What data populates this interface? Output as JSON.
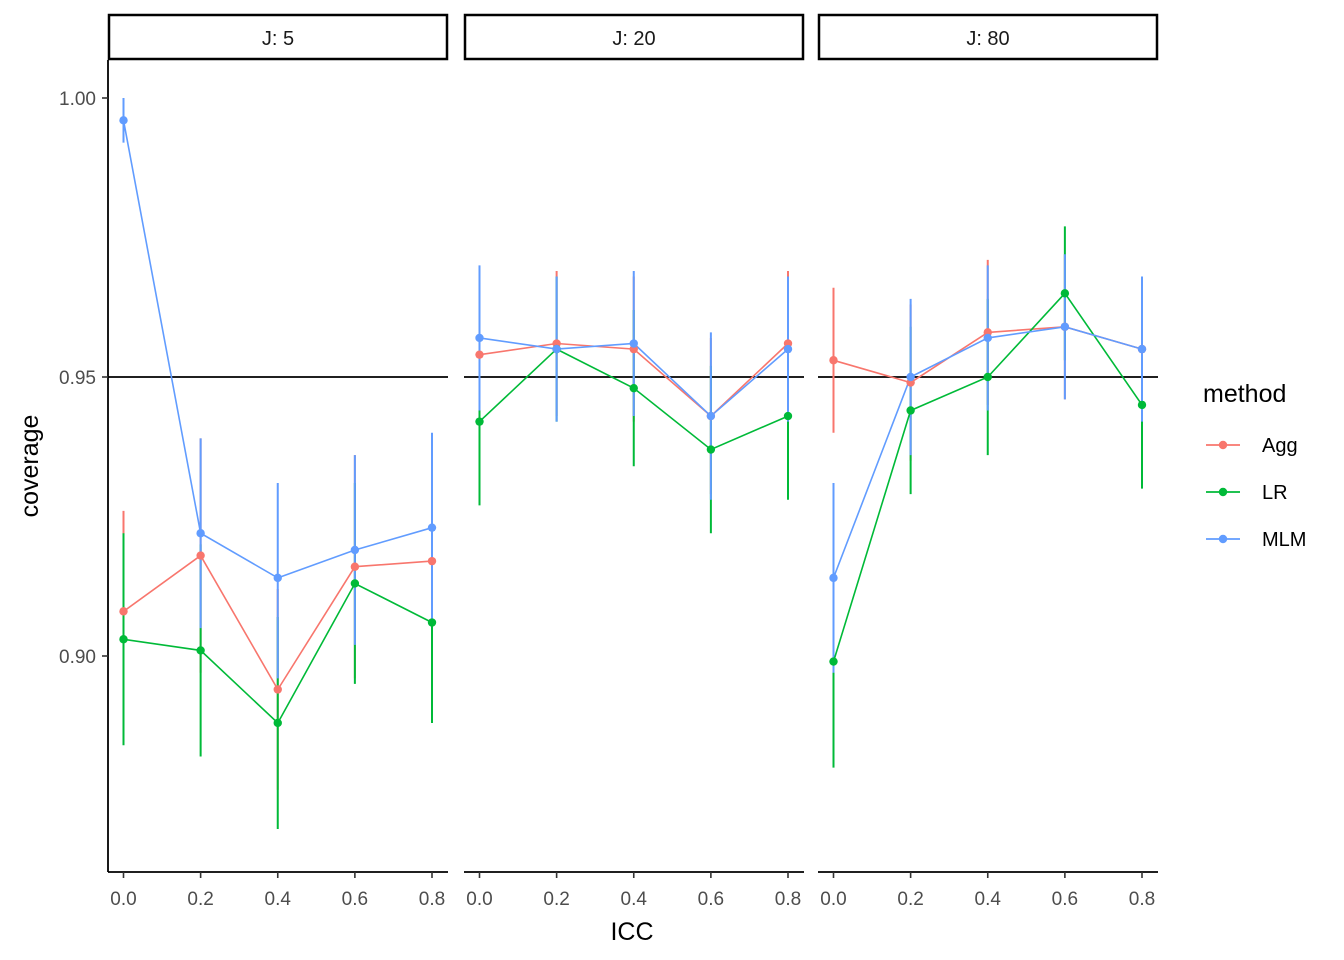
{
  "chart_data": {
    "type": "line",
    "xlabel": "ICC",
    "ylabel": "coverage",
    "x": [
      0.0,
      0.2,
      0.4,
      0.6,
      0.8
    ],
    "x_tick_labels": [
      "0.0",
      "0.2",
      "0.4",
      "0.6",
      "0.8"
    ],
    "ylim": [
      0.866,
      1.007
    ],
    "y_ticks": [
      0.9,
      0.95,
      1.0
    ],
    "y_tick_labels": [
      "0.90",
      "0.95",
      "1.00"
    ],
    "reference_line": 0.95,
    "grid": false,
    "legend": {
      "title": "method",
      "position": "right",
      "entries": [
        "Agg",
        "LR",
        "MLM"
      ]
    },
    "series_colors": {
      "Agg": "#f8766d",
      "LR": "#00ba38",
      "MLM": "#619cff"
    },
    "panels": [
      {
        "label": "J: 5",
        "series": [
          {
            "name": "Agg",
            "values": [
              0.908,
              0.918,
              0.894,
              0.916,
              0.917
            ],
            "lower": [
              0.89,
              0.897,
              0.876,
              0.896,
              0.897
            ],
            "upper": [
              0.926,
              0.939,
              0.912,
              0.936,
              0.937
            ]
          },
          {
            "name": "LR",
            "values": [
              0.903,
              0.901,
              0.888,
              0.913,
              0.906
            ],
            "lower": [
              0.884,
              0.882,
              0.869,
              0.895,
              0.888
            ],
            "upper": [
              0.922,
              0.92,
              0.907,
              0.931,
              0.924
            ]
          },
          {
            "name": "MLM",
            "values": [
              0.996,
              0.922,
              0.914,
              0.919,
              0.923
            ],
            "lower": [
              0.992,
              0.905,
              0.896,
              0.902,
              0.906
            ],
            "upper": [
              1.0,
              0.939,
              0.931,
              0.936,
              0.94
            ]
          }
        ]
      },
      {
        "label": "J: 20",
        "series": [
          {
            "name": "Agg",
            "values": [
              0.954,
              0.956,
              0.955,
              0.943,
              0.956
            ],
            "lower": [
              0.939,
              0.943,
              0.942,
              0.929,
              0.943
            ],
            "upper": [
              0.969,
              0.969,
              0.968,
              0.957,
              0.969
            ]
          },
          {
            "name": "LR",
            "values": [
              0.942,
              0.955,
              0.948,
              0.937,
              0.943
            ],
            "lower": [
              0.927,
              0.942,
              0.934,
              0.922,
              0.928
            ],
            "upper": [
              0.957,
              0.968,
              0.962,
              0.952,
              0.958
            ]
          },
          {
            "name": "MLM",
            "values": [
              0.957,
              0.955,
              0.956,
              0.943,
              0.955
            ],
            "lower": [
              0.944,
              0.942,
              0.943,
              0.928,
              0.942
            ],
            "upper": [
              0.97,
              0.968,
              0.969,
              0.958,
              0.968
            ]
          }
        ]
      },
      {
        "label": "J: 80",
        "series": [
          {
            "name": "Agg",
            "values": [
              0.953,
              0.949,
              0.958,
              0.959,
              0.955
            ],
            "lower": [
              0.94,
              0.935,
              0.945,
              0.946,
              0.942
            ],
            "upper": [
              0.966,
              0.963,
              0.971,
              0.972,
              0.968
            ]
          },
          {
            "name": "LR",
            "values": [
              0.899,
              0.944,
              0.95,
              0.965,
              0.945
            ],
            "lower": [
              0.88,
              0.929,
              0.936,
              0.953,
              0.93
            ],
            "upper": [
              0.918,
              0.959,
              0.964,
              0.977,
              0.96
            ]
          },
          {
            "name": "MLM",
            "values": [
              0.914,
              0.95,
              0.957,
              0.959,
              0.955
            ],
            "lower": [
              0.897,
              0.936,
              0.944,
              0.946,
              0.942
            ],
            "upper": [
              0.931,
              0.964,
              0.97,
              0.972,
              0.968
            ]
          }
        ]
      }
    ]
  }
}
